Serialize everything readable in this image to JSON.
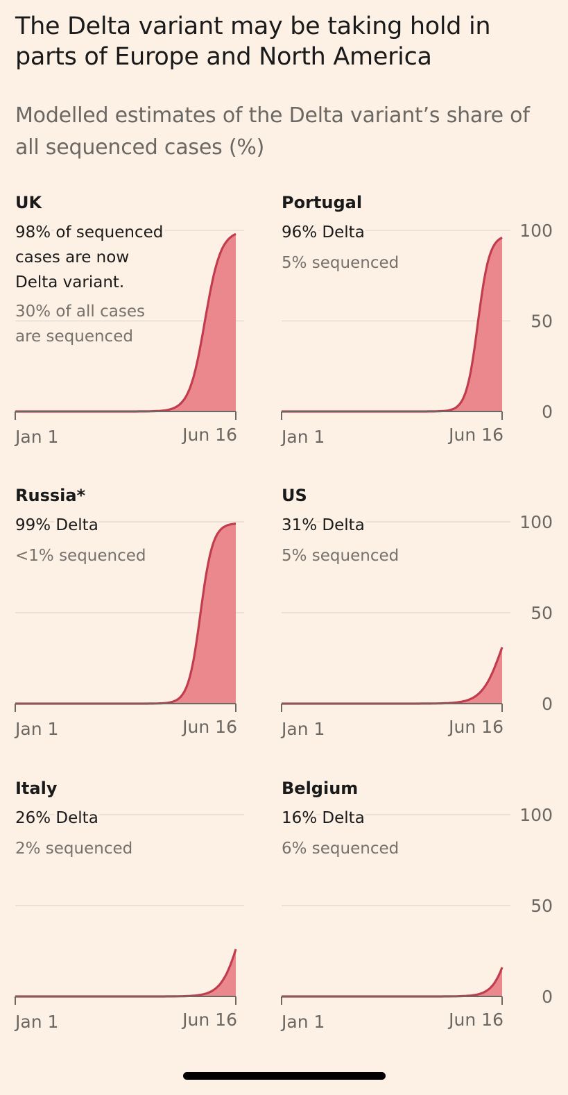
{
  "header": {
    "title": "The Delta variant may be taking hold in parts of Europe and North America",
    "subtitle": "Modelled estimates of the Delta variant’s share of all sequenced cases (%)"
  },
  "colors": {
    "background": "#fdf1e6",
    "line": "#c13d4e",
    "fill": "#e98289",
    "grid": "#e6dbd0",
    "axis": "#6b6763"
  },
  "chart_data": [
    {
      "type": "area",
      "name": "UK",
      "lines": [
        "98% of sequenced",
        "cases are now",
        "Delta variant."
      ],
      "sublines": [
        "30% of all cases",
        "are sequenced"
      ],
      "x": [
        "Jan 1",
        "Jun 16"
      ],
      "final_value": 98,
      "ylim": [
        0,
        100
      ],
      "yticks": [
        0,
        50,
        100
      ],
      "curve": {
        "midpoint_fraction": 0.86,
        "steepness": 28
      }
    },
    {
      "type": "area",
      "name": "Portugal",
      "lines": [
        "96% Delta"
      ],
      "sublines": [
        "5% sequenced"
      ],
      "x": [
        "Jan 1",
        "Jun 16"
      ],
      "final_value": 96,
      "ylim": [
        0,
        100
      ],
      "yticks": [
        0,
        50,
        100
      ],
      "curve": {
        "midpoint_fraction": 0.89,
        "steepness": 38
      }
    },
    {
      "type": "area",
      "name": "Russia*",
      "lines": [
        "99% Delta"
      ],
      "sublines": [
        "<1% sequenced"
      ],
      "x": [
        "Jan 1",
        "Jun 16"
      ],
      "final_value": 99,
      "ylim": [
        0,
        100
      ],
      "yticks": [
        0,
        50,
        100
      ],
      "curve": {
        "midpoint_fraction": 0.84,
        "steepness": 36
      }
    },
    {
      "type": "area",
      "name": "US",
      "lines": [
        "31% Delta"
      ],
      "sublines": [
        "5% sequenced"
      ],
      "x": [
        "Jan 1",
        "Jun 16"
      ],
      "final_value": 31,
      "ylim": [
        0,
        100
      ],
      "yticks": [
        0,
        50,
        100
      ],
      "curve": {
        "midpoint_fraction": 1.0,
        "steepness": 22
      }
    },
    {
      "type": "area",
      "name": "Italy",
      "lines": [
        "26% Delta"
      ],
      "sublines": [
        "2% sequenced"
      ],
      "x": [
        "Jan 1",
        "Jun 16"
      ],
      "final_value": 26,
      "ylim": [
        0,
        100
      ],
      "yticks": [
        0,
        50,
        100
      ],
      "curve": {
        "midpoint_fraction": 1.02,
        "steepness": 24
      }
    },
    {
      "type": "area",
      "name": "Belgium",
      "lines": [
        "16% Delta"
      ],
      "sublines": [
        "6% sequenced"
      ],
      "x": [
        "Jan 1",
        "Jun 16"
      ],
      "final_value": 16,
      "ylim": [
        0,
        100
      ],
      "yticks": [
        0,
        50,
        100
      ],
      "curve": {
        "midpoint_fraction": 1.05,
        "steepness": 26
      }
    }
  ]
}
